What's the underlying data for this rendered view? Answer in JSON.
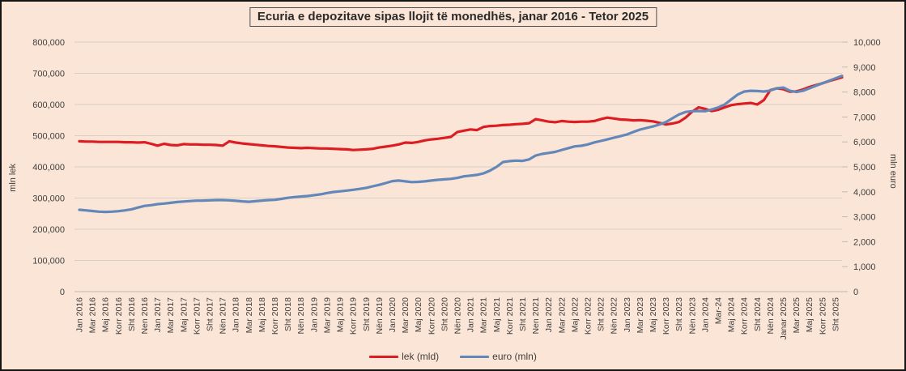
{
  "title": "Ecuria e depozitave sipas llojit të monedhës, janar 2016 - Tetor 2025",
  "colors": {
    "background": "#fbe5d6",
    "outer_border": "#141414",
    "title_border": "#4d4d4d",
    "grid": "#d9cfc5",
    "axis_line": "#c3b9af",
    "tick_text": "#3f3f3f",
    "lek_line": "#dc1d23",
    "euro_line": "#6287b8"
  },
  "legend": {
    "items": [
      {
        "label": "lek (mld)",
        "color": "#dc1d23"
      },
      {
        "label": "euro (mln)",
        "color": "#6287b8"
      }
    ]
  },
  "chart_data": {
    "type": "line",
    "title": "Ecuria e depozitave sipas llojit të monedhës, janar 2016 - Tetor 2025",
    "x_range_months": "Jan 2016 - Tetor 2025",
    "x_label_step": 2,
    "x_tick_labels": [
      "Jan 2016",
      "Mar 2016",
      "Maj 2016",
      "Korr 2016",
      "Sht 2016",
      "Nen 2016",
      "Jan 2017",
      "Mar 2017",
      "Maj 2017",
      "Korr 2017",
      "Sht 2017",
      "Nën 2017",
      "Jan 2018",
      "Mar 2018",
      "Maj 2018",
      "Korr 2018",
      "Sht 2018",
      "Nën 2018",
      "Jan 2019",
      "Mar 2019",
      "Maj 2019",
      "Korr 2019",
      "Sht 2019",
      "Nën 2019",
      "Jan 2020",
      "Mar 2020",
      "Maj 2020",
      "Korr 2020",
      "Sht 2020",
      "Nën 2020",
      "Jan 2021",
      "Mar 2021",
      "Maj 2021",
      "Korr 2021",
      "Sht 2021",
      "Nen 2021",
      "Jan 2022",
      "Mar 2022",
      "Maj 2022",
      "Korr 2022",
      "Sht 2022",
      "Nën 2022",
      "Jan 2023",
      "Mar 2023",
      "Maj 2023",
      "Korr 2023",
      "Sht 2023",
      "Nën 2023",
      "Jan 2024",
      "Mar-24",
      "Maj 2024",
      "Korr 2024",
      "Sht 2024",
      "Nën 2024",
      "Janar 2025",
      "Mar 2025",
      "Maj 2025",
      "Korr 2025",
      "Sht 2025"
    ],
    "left_axis": {
      "label": "mln lek",
      "min": 0,
      "max": 800000,
      "tick_labels": [
        "0",
        "100,000",
        "200,000",
        "300,000",
        "400,000",
        "500,000",
        "600,000",
        "700,000",
        "800,000"
      ]
    },
    "right_axis": {
      "label": "mln euro",
      "min": 0,
      "max": 10000,
      "tick_labels": [
        "0",
        "1,000",
        "2,000",
        "3,000",
        "4,000",
        "5,000",
        "6,000",
        "7,000",
        "8,000",
        "9,000",
        "10,000"
      ]
    },
    "grid": "horizontal-only",
    "legend_position": "bottom",
    "series": [
      {
        "name": "lek (mld)",
        "axis": "left",
        "color": "#dc1d23",
        "values": [
          482000,
          481000,
          481000,
          480000,
          480000,
          480000,
          480000,
          479000,
          479000,
          478000,
          479000,
          474000,
          468000,
          474000,
          470000,
          469000,
          473000,
          472000,
          472000,
          471000,
          471000,
          470000,
          468000,
          482000,
          478000,
          475000,
          473000,
          471000,
          469000,
          467000,
          466000,
          464000,
          462000,
          461000,
          460000,
          461000,
          460000,
          459000,
          459000,
          458000,
          457000,
          456000,
          454000,
          455000,
          456000,
          458000,
          462000,
          465000,
          468000,
          472000,
          478000,
          477000,
          480000,
          485000,
          488000,
          490000,
          493000,
          496000,
          512000,
          516000,
          520000,
          518000,
          528000,
          531000,
          532000,
          534000,
          535000,
          537000,
          538000,
          540000,
          553000,
          549000,
          545000,
          543000,
          547000,
          545000,
          544000,
          545000,
          545000,
          547000,
          553000,
          558000,
          555000,
          552000,
          551000,
          549000,
          550000,
          548000,
          546000,
          541000,
          536000,
          539000,
          544000,
          558000,
          577000,
          591000,
          586000,
          579000,
          583000,
          591000,
          598000,
          601000,
          603000,
          605000,
          600000,
          614000,
          646000,
          652000,
          649000,
          641000,
          642000,
          648000,
          656000,
          662000,
          668000,
          675000,
          681000,
          687000
        ]
      },
      {
        "name": "euro (mln)",
        "axis": "right",
        "color": "#6287b8",
        "values": [
          3280,
          3255,
          3230,
          3205,
          3195,
          3205,
          3225,
          3255,
          3300,
          3370,
          3435,
          3465,
          3505,
          3530,
          3560,
          3590,
          3610,
          3630,
          3645,
          3650,
          3660,
          3668,
          3670,
          3660,
          3640,
          3618,
          3600,
          3622,
          3650,
          3668,
          3680,
          3718,
          3760,
          3790,
          3812,
          3830,
          3868,
          3900,
          3950,
          3995,
          4020,
          4050,
          4080,
          4118,
          4160,
          4220,
          4280,
          4350,
          4430,
          4450,
          4420,
          4390,
          4400,
          4420,
          4450,
          4480,
          4500,
          4520,
          4560,
          4620,
          4650,
          4680,
          4740,
          4850,
          5000,
          5195,
          5230,
          5250,
          5240,
          5300,
          5455,
          5520,
          5560,
          5600,
          5680,
          5750,
          5820,
          5845,
          5900,
          5980,
          6040,
          6100,
          6170,
          6230,
          6300,
          6400,
          6495,
          6560,
          6620,
          6700,
          6800,
          6950,
          7100,
          7200,
          7230,
          7240,
          7230,
          7300,
          7380,
          7500,
          7700,
          7900,
          8020,
          8050,
          8040,
          8020,
          8060,
          8150,
          8180,
          8050,
          8000,
          8050,
          8150,
          8250,
          8350,
          8450,
          8550,
          8650
        ]
      }
    ]
  }
}
